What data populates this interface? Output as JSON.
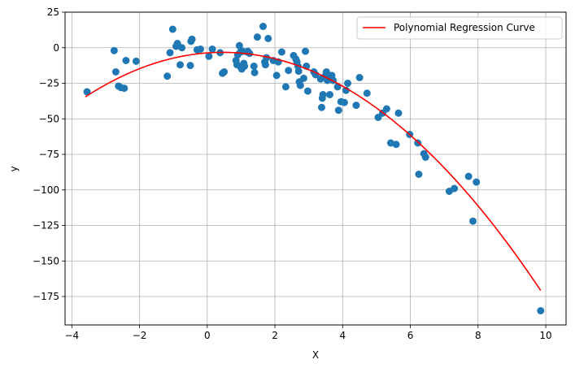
{
  "chart_data": {
    "type": "scatter",
    "title": "",
    "xlabel": "X",
    "ylabel": "y",
    "xlim": [
      -4.2,
      10.6
    ],
    "ylim": [
      -195,
      25
    ],
    "xticks": [
      -4,
      -2,
      0,
      2,
      4,
      6,
      8,
      10
    ],
    "yticks": [
      25,
      0,
      -25,
      -50,
      -75,
      -100,
      -125,
      -150,
      -175
    ],
    "grid": true,
    "legend_position": "top-right",
    "scatter_color": "#1f77b4",
    "curve_color": "#ff0000",
    "series": [
      {
        "kind": "scatter",
        "points": [
          [
            -3.55,
            -31
          ],
          [
            -2.75,
            -2
          ],
          [
            -2.7,
            -17
          ],
          [
            -2.62,
            -27
          ],
          [
            -2.55,
            -28
          ],
          [
            -2.45,
            -28.5
          ],
          [
            -2.4,
            -9
          ],
          [
            -2.1,
            -9.5
          ],
          [
            -1.18,
            -20
          ],
          [
            -1.1,
            -3.5
          ],
          [
            -1.02,
            13
          ],
          [
            -0.92,
            1
          ],
          [
            -0.88,
            3
          ],
          [
            -0.8,
            -12
          ],
          [
            -0.75,
            0
          ],
          [
            -0.5,
            -12.5
          ],
          [
            -0.48,
            4.5
          ],
          [
            -0.45,
            6
          ],
          [
            -0.3,
            -1.5
          ],
          [
            -0.2,
            -1
          ],
          [
            0.05,
            -6
          ],
          [
            0.15,
            -1
          ],
          [
            0.38,
            -3.5
          ],
          [
            0.45,
            -18
          ],
          [
            0.5,
            -17
          ],
          [
            0.85,
            -9
          ],
          [
            0.88,
            -12
          ],
          [
            0.9,
            -5
          ],
          [
            0.95,
            1.5
          ],
          [
            0.98,
            -3
          ],
          [
            1.0,
            -14
          ],
          [
            1.02,
            -15
          ],
          [
            1.05,
            -2.5
          ],
          [
            1.08,
            -11
          ],
          [
            1.1,
            -13
          ],
          [
            1.18,
            -3
          ],
          [
            1.2,
            -2.5
          ],
          [
            1.25,
            -4
          ],
          [
            1.38,
            -13
          ],
          [
            1.4,
            -17.5
          ],
          [
            1.48,
            7.5
          ],
          [
            1.65,
            15
          ],
          [
            1.7,
            -10
          ],
          [
            1.72,
            -12
          ],
          [
            1.75,
            -7
          ],
          [
            1.8,
            6.5
          ],
          [
            1.95,
            -9
          ],
          [
            2.05,
            -19.5
          ],
          [
            2.1,
            -10
          ],
          [
            2.2,
            -3
          ],
          [
            2.32,
            -27.5
          ],
          [
            2.4,
            -16
          ],
          [
            2.55,
            -5.5
          ],
          [
            2.62,
            -8
          ],
          [
            2.65,
            -10
          ],
          [
            2.68,
            -13
          ],
          [
            2.7,
            -16.5
          ],
          [
            2.72,
            -24
          ],
          [
            2.75,
            -26.5
          ],
          [
            2.85,
            -21.5
          ],
          [
            2.9,
            -2.5
          ],
          [
            2.93,
            -13
          ],
          [
            2.97,
            -30.5
          ],
          [
            3.15,
            -17
          ],
          [
            3.2,
            -19
          ],
          [
            3.35,
            -22
          ],
          [
            3.38,
            -42
          ],
          [
            3.4,
            -35.5
          ],
          [
            3.42,
            -33
          ],
          [
            3.48,
            -20
          ],
          [
            3.52,
            -17
          ],
          [
            3.55,
            -23
          ],
          [
            3.6,
            -21
          ],
          [
            3.62,
            -33
          ],
          [
            3.68,
            -19.5
          ],
          [
            3.72,
            -23
          ],
          [
            3.85,
            -27.5
          ],
          [
            3.88,
            -44
          ],
          [
            3.95,
            -38
          ],
          [
            4.05,
            -38.5
          ],
          [
            4.1,
            -30
          ],
          [
            4.15,
            -25
          ],
          [
            4.4,
            -40.5
          ],
          [
            4.5,
            -21
          ],
          [
            4.72,
            -32
          ],
          [
            5.05,
            -49
          ],
          [
            5.18,
            -46
          ],
          [
            5.3,
            -43
          ],
          [
            5.42,
            -67
          ],
          [
            5.58,
            -68
          ],
          [
            5.65,
            -46
          ],
          [
            5.98,
            -61
          ],
          [
            6.22,
            -67
          ],
          [
            6.25,
            -89
          ],
          [
            6.4,
            -74.5
          ],
          [
            6.45,
            -77
          ],
          [
            7.15,
            -101
          ],
          [
            7.3,
            -99
          ],
          [
            7.72,
            -90.5
          ],
          [
            7.85,
            -122
          ],
          [
            7.95,
            -94.5
          ],
          [
            9.85,
            -185
          ]
        ]
      },
      {
        "kind": "line",
        "name": "Polynomial Regression Curve",
        "coefficients": [
          -3.65,
          1.75,
          -1.9
        ]
      }
    ],
    "curve_range": [
      -3.6,
      9.85
    ]
  }
}
